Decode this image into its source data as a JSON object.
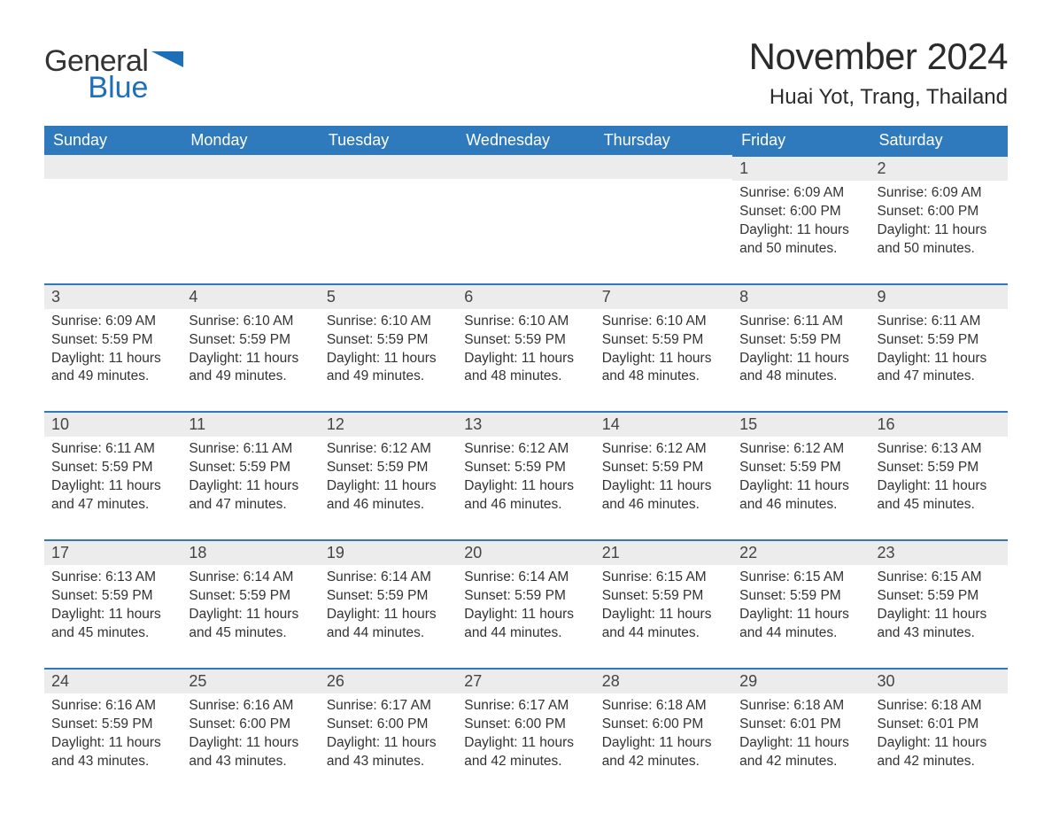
{
  "brand": {
    "word1": "General",
    "word2": "Blue",
    "accent_color": "#1d6fb8"
  },
  "title": "November 2024",
  "location": "Huai Yot, Trang, Thailand",
  "colors": {
    "header_bg": "#2f79bd",
    "header_text": "#ffffff",
    "cell_border": "#2f79bd",
    "daynum_bg": "#ececec",
    "text": "#333333",
    "page_bg": "#ffffff"
  },
  "day_names": [
    "Sunday",
    "Monday",
    "Tuesday",
    "Wednesday",
    "Thursday",
    "Friday",
    "Saturday"
  ],
  "weeks": [
    [
      {
        "blank": true
      },
      {
        "blank": true
      },
      {
        "blank": true
      },
      {
        "blank": true
      },
      {
        "blank": true
      },
      {
        "day": "1",
        "sunrise": "Sunrise: 6:09 AM",
        "sunset": "Sunset: 6:00 PM",
        "daylight": "Daylight: 11 hours and 50 minutes."
      },
      {
        "day": "2",
        "sunrise": "Sunrise: 6:09 AM",
        "sunset": "Sunset: 6:00 PM",
        "daylight": "Daylight: 11 hours and 50 minutes."
      }
    ],
    [
      {
        "day": "3",
        "sunrise": "Sunrise: 6:09 AM",
        "sunset": "Sunset: 5:59 PM",
        "daylight": "Daylight: 11 hours and 49 minutes."
      },
      {
        "day": "4",
        "sunrise": "Sunrise: 6:10 AM",
        "sunset": "Sunset: 5:59 PM",
        "daylight": "Daylight: 11 hours and 49 minutes."
      },
      {
        "day": "5",
        "sunrise": "Sunrise: 6:10 AM",
        "sunset": "Sunset: 5:59 PM",
        "daylight": "Daylight: 11 hours and 49 minutes."
      },
      {
        "day": "6",
        "sunrise": "Sunrise: 6:10 AM",
        "sunset": "Sunset: 5:59 PM",
        "daylight": "Daylight: 11 hours and 48 minutes."
      },
      {
        "day": "7",
        "sunrise": "Sunrise: 6:10 AM",
        "sunset": "Sunset: 5:59 PM",
        "daylight": "Daylight: 11 hours and 48 minutes."
      },
      {
        "day": "8",
        "sunrise": "Sunrise: 6:11 AM",
        "sunset": "Sunset: 5:59 PM",
        "daylight": "Daylight: 11 hours and 48 minutes."
      },
      {
        "day": "9",
        "sunrise": "Sunrise: 6:11 AM",
        "sunset": "Sunset: 5:59 PM",
        "daylight": "Daylight: 11 hours and 47 minutes."
      }
    ],
    [
      {
        "day": "10",
        "sunrise": "Sunrise: 6:11 AM",
        "sunset": "Sunset: 5:59 PM",
        "daylight": "Daylight: 11 hours and 47 minutes."
      },
      {
        "day": "11",
        "sunrise": "Sunrise: 6:11 AM",
        "sunset": "Sunset: 5:59 PM",
        "daylight": "Daylight: 11 hours and 47 minutes."
      },
      {
        "day": "12",
        "sunrise": "Sunrise: 6:12 AM",
        "sunset": "Sunset: 5:59 PM",
        "daylight": "Daylight: 11 hours and 46 minutes."
      },
      {
        "day": "13",
        "sunrise": "Sunrise: 6:12 AM",
        "sunset": "Sunset: 5:59 PM",
        "daylight": "Daylight: 11 hours and 46 minutes."
      },
      {
        "day": "14",
        "sunrise": "Sunrise: 6:12 AM",
        "sunset": "Sunset: 5:59 PM",
        "daylight": "Daylight: 11 hours and 46 minutes."
      },
      {
        "day": "15",
        "sunrise": "Sunrise: 6:12 AM",
        "sunset": "Sunset: 5:59 PM",
        "daylight": "Daylight: 11 hours and 46 minutes."
      },
      {
        "day": "16",
        "sunrise": "Sunrise: 6:13 AM",
        "sunset": "Sunset: 5:59 PM",
        "daylight": "Daylight: 11 hours and 45 minutes."
      }
    ],
    [
      {
        "day": "17",
        "sunrise": "Sunrise: 6:13 AM",
        "sunset": "Sunset: 5:59 PM",
        "daylight": "Daylight: 11 hours and 45 minutes."
      },
      {
        "day": "18",
        "sunrise": "Sunrise: 6:14 AM",
        "sunset": "Sunset: 5:59 PM",
        "daylight": "Daylight: 11 hours and 45 minutes."
      },
      {
        "day": "19",
        "sunrise": "Sunrise: 6:14 AM",
        "sunset": "Sunset: 5:59 PM",
        "daylight": "Daylight: 11 hours and 44 minutes."
      },
      {
        "day": "20",
        "sunrise": "Sunrise: 6:14 AM",
        "sunset": "Sunset: 5:59 PM",
        "daylight": "Daylight: 11 hours and 44 minutes."
      },
      {
        "day": "21",
        "sunrise": "Sunrise: 6:15 AM",
        "sunset": "Sunset: 5:59 PM",
        "daylight": "Daylight: 11 hours and 44 minutes."
      },
      {
        "day": "22",
        "sunrise": "Sunrise: 6:15 AM",
        "sunset": "Sunset: 5:59 PM",
        "daylight": "Daylight: 11 hours and 44 minutes."
      },
      {
        "day": "23",
        "sunrise": "Sunrise: 6:15 AM",
        "sunset": "Sunset: 5:59 PM",
        "daylight": "Daylight: 11 hours and 43 minutes."
      }
    ],
    [
      {
        "day": "24",
        "sunrise": "Sunrise: 6:16 AM",
        "sunset": "Sunset: 5:59 PM",
        "daylight": "Daylight: 11 hours and 43 minutes."
      },
      {
        "day": "25",
        "sunrise": "Sunrise: 6:16 AM",
        "sunset": "Sunset: 6:00 PM",
        "daylight": "Daylight: 11 hours and 43 minutes."
      },
      {
        "day": "26",
        "sunrise": "Sunrise: 6:17 AM",
        "sunset": "Sunset: 6:00 PM",
        "daylight": "Daylight: 11 hours and 43 minutes."
      },
      {
        "day": "27",
        "sunrise": "Sunrise: 6:17 AM",
        "sunset": "Sunset: 6:00 PM",
        "daylight": "Daylight: 11 hours and 42 minutes."
      },
      {
        "day": "28",
        "sunrise": "Sunrise: 6:18 AM",
        "sunset": "Sunset: 6:00 PM",
        "daylight": "Daylight: 11 hours and 42 minutes."
      },
      {
        "day": "29",
        "sunrise": "Sunrise: 6:18 AM",
        "sunset": "Sunset: 6:01 PM",
        "daylight": "Daylight: 11 hours and 42 minutes."
      },
      {
        "day": "30",
        "sunrise": "Sunrise: 6:18 AM",
        "sunset": "Sunset: 6:01 PM",
        "daylight": "Daylight: 11 hours and 42 minutes."
      }
    ]
  ]
}
